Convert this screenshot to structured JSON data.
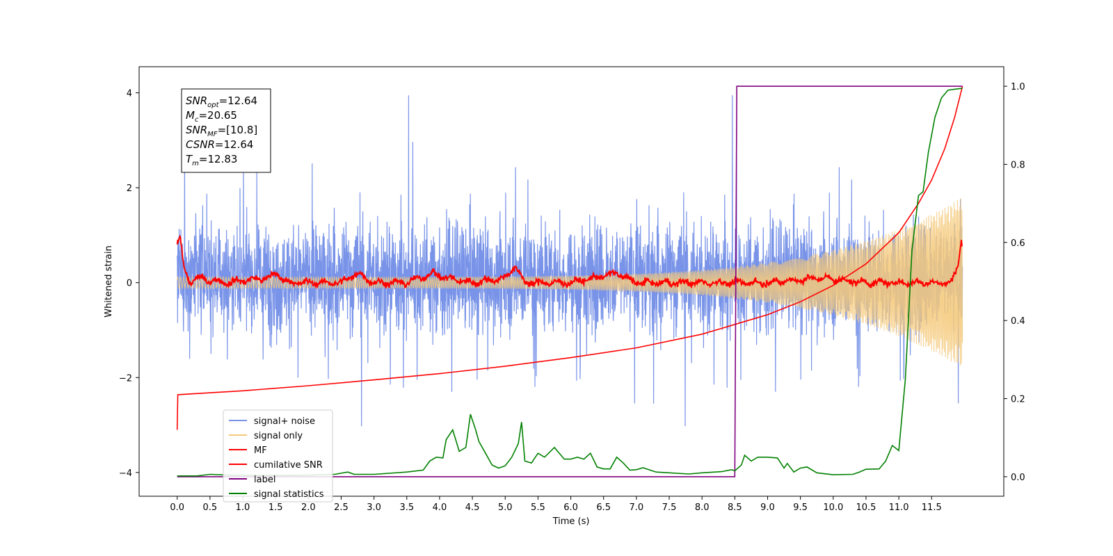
{
  "chart_data": {
    "type": "line",
    "xlabel": "Time (s)",
    "ylabel": "Whitened strain",
    "xlim": [
      -0.58,
      12.6
    ],
    "ylim": [
      -4.5,
      4.55
    ],
    "y2lim": [
      -0.05,
      1.05
    ],
    "x_ticks": [
      0.0,
      0.5,
      1.0,
      1.5,
      2.0,
      2.5,
      3.0,
      3.5,
      4.0,
      4.5,
      5.0,
      5.5,
      6.0,
      6.5,
      7.0,
      7.5,
      8.0,
      8.5,
      9.0,
      9.5,
      10.0,
      10.5,
      11.0,
      11.5
    ],
    "x_tick_labels": [
      "0.0",
      "0.5",
      "1.0",
      "1.5",
      "2.0",
      "2.5",
      "3.0",
      "3.5",
      "4.0",
      "4.5",
      "5.0",
      "5.5",
      "6.0",
      "6.5",
      "7.0",
      "7.5",
      "8.0",
      "8.5",
      "9.0",
      "9.5",
      "10.0",
      "10.5",
      "11.0",
      "11.5"
    ],
    "y_ticks": [
      -4,
      -2,
      0,
      2,
      4
    ],
    "y_tick_labels": [
      "−4",
      "−2",
      "0",
      "2",
      "4"
    ],
    "y2_ticks": [
      0.0,
      0.2,
      0.4,
      0.6,
      0.8,
      1.0
    ],
    "y2_tick_labels": [
      "0.0",
      "0.2",
      "0.4",
      "0.6",
      "0.8",
      "1.0"
    ],
    "grid": false,
    "legend_position": "lower-left",
    "annotation": {
      "lines": [
        {
          "main": "SNR",
          "sub": "opt",
          "value": "=12.64"
        },
        {
          "main": "M",
          "sub": "c",
          "value": "=20.65"
        },
        {
          "main": "SNR",
          "sub": "MF",
          "value": "=[10.8]"
        },
        {
          "main": "CSNR",
          "sub": "",
          "value": "=12.64"
        },
        {
          "main": "T",
          "sub": "m",
          "value": "=12.83"
        }
      ]
    },
    "series": [
      {
        "name": "signal+ noise",
        "color": "#7893e8",
        "axis": "left",
        "kind": "noise",
        "t_start": 0.0,
        "t_end": 11.97,
        "typical_range": [
          -1.7,
          2.0
        ],
        "max_peak": 3.95,
        "min_peak": -3.6
      },
      {
        "name": "signal only",
        "color": "#f5c97a",
        "axis": "left",
        "kind": "chirp",
        "t_start": 0.0,
        "t_end": 11.97,
        "amplitude_start": 0.12,
        "amplitude_end": 1.8
      },
      {
        "name": "MF",
        "color": "#ff0000",
        "axis": "left",
        "kind": "jitter",
        "points": [
          [
            0.0,
            0.85
          ],
          [
            0.05,
            0.9
          ],
          [
            0.1,
            0.3
          ],
          [
            0.2,
            0.0
          ],
          [
            0.3,
            0.1
          ],
          [
            0.5,
            0.05
          ],
          [
            0.8,
            0.0
          ],
          [
            1.0,
            0.05
          ],
          [
            1.4,
            0.1
          ],
          [
            1.5,
            0.2
          ],
          [
            1.7,
            0.0
          ],
          [
            2.0,
            0.0
          ],
          [
            2.5,
            0.0
          ],
          [
            2.75,
            0.2
          ],
          [
            3.0,
            0.0
          ],
          [
            3.5,
            0.0
          ],
          [
            3.9,
            0.2
          ],
          [
            4.1,
            0.1
          ],
          [
            4.5,
            0.0
          ],
          [
            5.0,
            0.1
          ],
          [
            5.15,
            0.35
          ],
          [
            5.3,
            0.0
          ],
          [
            6.0,
            0.0
          ],
          [
            6.7,
            0.2
          ],
          [
            7.0,
            0.0
          ],
          [
            8.0,
            0.0
          ],
          [
            9.0,
            0.0
          ],
          [
            9.8,
            0.1
          ],
          [
            10.5,
            0.0
          ],
          [
            11.5,
            0.0
          ],
          [
            11.8,
            0.0
          ],
          [
            11.9,
            0.35
          ],
          [
            11.95,
            0.9
          ],
          [
            11.97,
            0.8
          ]
        ]
      },
      {
        "name": "cumilative SNR",
        "color": "#ff0000",
        "axis": "right",
        "points": [
          [
            0.0,
            0.12
          ],
          [
            0.01,
            0.21
          ],
          [
            1.0,
            0.22
          ],
          [
            2.0,
            0.233
          ],
          [
            3.0,
            0.248
          ],
          [
            4.0,
            0.264
          ],
          [
            5.0,
            0.283
          ],
          [
            6.0,
            0.305
          ],
          [
            7.0,
            0.33
          ],
          [
            8.0,
            0.365
          ],
          [
            8.5,
            0.39
          ],
          [
            9.0,
            0.415
          ],
          [
            9.5,
            0.448
          ],
          [
            10.0,
            0.49
          ],
          [
            10.5,
            0.545
          ],
          [
            11.0,
            0.625
          ],
          [
            11.3,
            0.7
          ],
          [
            11.5,
            0.76
          ],
          [
            11.7,
            0.84
          ],
          [
            11.85,
            0.92
          ],
          [
            11.97,
            1.0
          ]
        ]
      },
      {
        "name": "label",
        "color": "#800080",
        "axis": "right",
        "points": [
          [
            0.0,
            0.0
          ],
          [
            8.5,
            0.0
          ],
          [
            8.53,
            1.0
          ],
          [
            11.97,
            1.0
          ]
        ]
      },
      {
        "name": "signal statistics",
        "color": "#008000",
        "axis": "right",
        "points": [
          [
            0.0,
            0.002
          ],
          [
            0.3,
            0.002
          ],
          [
            0.5,
            0.006
          ],
          [
            0.8,
            0.004
          ],
          [
            1.0,
            0.004
          ],
          [
            1.5,
            0.003
          ],
          [
            2.0,
            0.004
          ],
          [
            2.4,
            0.006
          ],
          [
            2.6,
            0.012
          ],
          [
            2.7,
            0.006
          ],
          [
            3.0,
            0.006
          ],
          [
            3.5,
            0.012
          ],
          [
            3.75,
            0.017
          ],
          [
            3.85,
            0.04
          ],
          [
            3.95,
            0.05
          ],
          [
            4.05,
            0.048
          ],
          [
            4.1,
            0.095
          ],
          [
            4.2,
            0.12
          ],
          [
            4.3,
            0.065
          ],
          [
            4.4,
            0.075
          ],
          [
            4.47,
            0.16
          ],
          [
            4.55,
            0.12
          ],
          [
            4.6,
            0.09
          ],
          [
            4.7,
            0.06
          ],
          [
            4.8,
            0.03
          ],
          [
            4.9,
            0.022
          ],
          [
            5.0,
            0.028
          ],
          [
            5.1,
            0.05
          ],
          [
            5.2,
            0.085
          ],
          [
            5.25,
            0.14
          ],
          [
            5.3,
            0.04
          ],
          [
            5.4,
            0.035
          ],
          [
            5.5,
            0.06
          ],
          [
            5.6,
            0.05
          ],
          [
            5.75,
            0.075
          ],
          [
            5.9,
            0.045
          ],
          [
            6.0,
            0.045
          ],
          [
            6.1,
            0.05
          ],
          [
            6.2,
            0.045
          ],
          [
            6.3,
            0.06
          ],
          [
            6.4,
            0.025
          ],
          [
            6.5,
            0.02
          ],
          [
            6.6,
            0.02
          ],
          [
            6.7,
            0.05
          ],
          [
            6.8,
            0.035
          ],
          [
            6.9,
            0.017
          ],
          [
            7.0,
            0.018
          ],
          [
            7.1,
            0.023
          ],
          [
            7.3,
            0.012
          ],
          [
            7.5,
            0.01
          ],
          [
            7.8,
            0.007
          ],
          [
            8.0,
            0.01
          ],
          [
            8.3,
            0.013
          ],
          [
            8.45,
            0.018
          ],
          [
            8.5,
            0.015
          ],
          [
            8.6,
            0.03
          ],
          [
            8.65,
            0.055
          ],
          [
            8.75,
            0.04
          ],
          [
            8.85,
            0.05
          ],
          [
            9.0,
            0.05
          ],
          [
            9.15,
            0.048
          ],
          [
            9.25,
            0.022
          ],
          [
            9.3,
            0.034
          ],
          [
            9.4,
            0.012
          ],
          [
            9.5,
            0.022
          ],
          [
            9.6,
            0.025
          ],
          [
            9.75,
            0.01
          ],
          [
            10.0,
            0.005
          ],
          [
            10.3,
            0.006
          ],
          [
            10.4,
            0.012
          ],
          [
            10.5,
            0.019
          ],
          [
            10.7,
            0.02
          ],
          [
            10.8,
            0.04
          ],
          [
            10.9,
            0.08
          ],
          [
            11.0,
            0.067
          ],
          [
            11.1,
            0.25
          ],
          [
            11.2,
            0.58
          ],
          [
            11.3,
            0.72
          ],
          [
            11.37,
            0.73
          ],
          [
            11.45,
            0.83
          ],
          [
            11.55,
            0.92
          ],
          [
            11.65,
            0.97
          ],
          [
            11.75,
            0.99
          ],
          [
            11.97,
            0.995
          ]
        ]
      }
    ]
  }
}
